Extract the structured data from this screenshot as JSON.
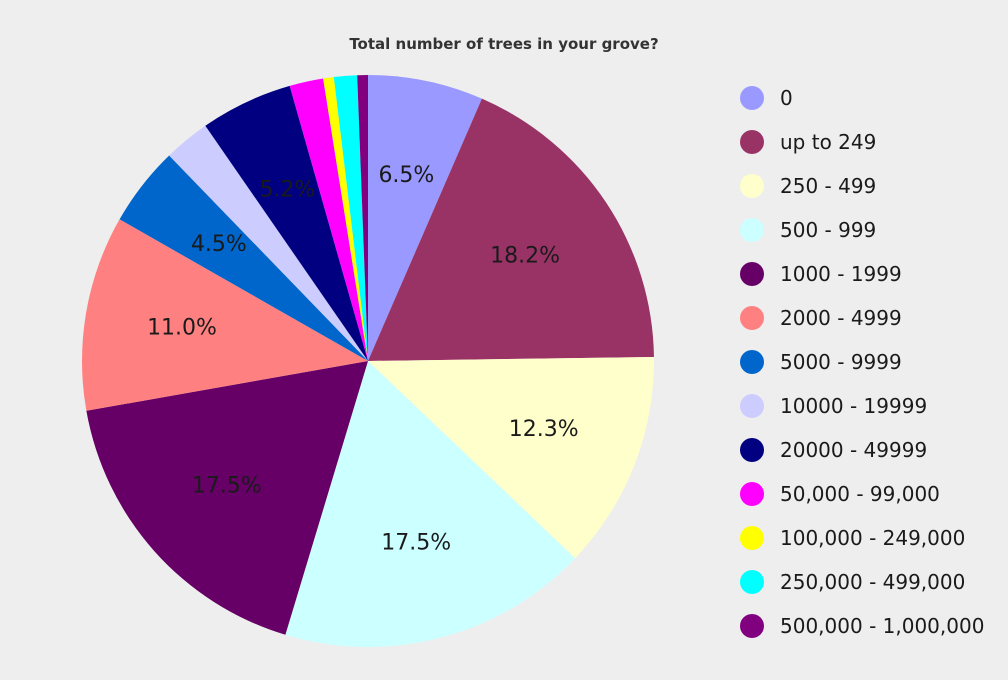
{
  "chart_data": {
    "type": "pie",
    "title": "Total number of trees in your grove?",
    "legend_position": "right",
    "slices": [
      {
        "label": "0",
        "value": 6.5,
        "display": "6.5%",
        "color": "#9999ff"
      },
      {
        "label": "up to 249",
        "value": 18.2,
        "display": "18.2%",
        "color": "#993366"
      },
      {
        "label": "250 - 499",
        "value": 12.3,
        "display": "12.3%",
        "color": "#ffffcc"
      },
      {
        "label": "500 - 999",
        "value": 17.5,
        "display": "17.5%",
        "color": "#ccffff"
      },
      {
        "label": "1000 - 1999",
        "value": 17.5,
        "display": "17.5%",
        "color": "#660066"
      },
      {
        "label": "2000 - 4999",
        "value": 11.0,
        "display": "11.0%",
        "color": "#ff8080"
      },
      {
        "label": "5000 - 9999",
        "value": 4.5,
        "display": "4.5%",
        "color": "#0066cc"
      },
      {
        "label": "10000 - 19999",
        "value": 2.6,
        "display": "",
        "color": "#ccccff"
      },
      {
        "label": "20000 - 49999",
        "value": 5.2,
        "display": "5.2%",
        "color": "#000080"
      },
      {
        "label": "50,000 - 99,000",
        "value": 1.9,
        "display": "",
        "color": "#ff00ff"
      },
      {
        "label": "100,000 - 249,000",
        "value": 0.6,
        "display": "",
        "color": "#ffff00"
      },
      {
        "label": "250,000 - 499,000",
        "value": 1.3,
        "display": "",
        "color": "#00ffff"
      },
      {
        "label": "500,000 - 1,000,000",
        "value": 0.6,
        "display": "",
        "color": "#800080"
      }
    ]
  }
}
